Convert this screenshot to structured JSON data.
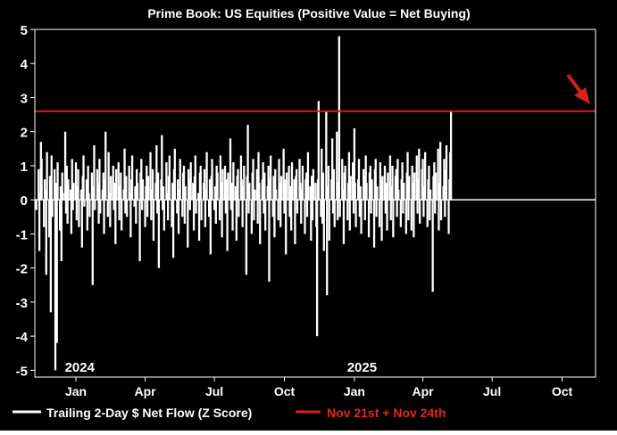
{
  "chart_data": {
    "type": "bar",
    "title": "Prime Book: US Equities (Positive Value = Net Buying)",
    "xlabel": "",
    "ylabel": "",
    "ylim": [
      -5.2,
      5
    ],
    "yticks": [
      5,
      4,
      3,
      2,
      1,
      0,
      -1,
      -2,
      -3,
      -4,
      -5
    ],
    "xlim": [
      "2023-11-22",
      "2025-11-28"
    ],
    "x_ticks": [
      {
        "date": "2024-01-15",
        "label": "Jan"
      },
      {
        "date": "2024-04-15",
        "label": "Apr"
      },
      {
        "date": "2024-07-15",
        "label": "Jul"
      },
      {
        "date": "2024-10-15",
        "label": "Oct"
      },
      {
        "date": "2025-01-15",
        "label": "Jan"
      },
      {
        "date": "2025-04-15",
        "label": "Apr"
      },
      {
        "date": "2025-07-15",
        "label": "Jul"
      },
      {
        "date": "2025-10-15",
        "label": "Oct"
      }
    ],
    "year_labels": [
      {
        "date": "2024-01-20",
        "label": "2024"
      },
      {
        "date": "2025-01-25",
        "label": "2025"
      }
    ],
    "reference_line": {
      "value": 2.6,
      "name": "Nov 21st + Nov 24th",
      "color": "#d91e1e"
    },
    "grid": false,
    "legend_position": "bottom",
    "colors": {
      "background": "#000000",
      "series": "#ffffff",
      "reference": "#d91e1e",
      "title": "#ffffff"
    },
    "series": [
      {
        "name": "Trailing 2-Day $ Net Flow (Z Score)",
        "start_date": "2023-11-24",
        "frequency": "business-day",
        "values": [
          -0.3,
          0.9,
          -1.5,
          0.2,
          1.7,
          1.2,
          -0.8,
          0.6,
          0.3,
          -2.2,
          1.4,
          -1.1,
          0.7,
          -3.3,
          1.3,
          -0.5,
          0.9,
          -5.0,
          0.5,
          -4.2,
          1.1,
          -0.9,
          0.4,
          -1.8,
          0.8,
          0.2,
          2.0,
          -0.4,
          1.0,
          -0.7,
          0.6,
          0.3,
          -1.0,
          1.2,
          -0.3,
          0.5,
          1.1,
          -0.6,
          0.4,
          0.9,
          -0.8,
          0.3,
          -1.4,
          0.7,
          1.3,
          -0.2,
          0.6,
          -0.9,
          1.0,
          0.2,
          -0.5,
          0.8,
          -2.5,
          0.4,
          1.6,
          -0.3,
          0.9,
          0.5,
          -0.7,
          1.2,
          -0.4,
          0.3,
          0.8,
          -1.0,
          0.6,
          2.0,
          -0.5,
          1.4,
          0.2,
          -0.8,
          0.7,
          1.0,
          -0.3,
          0.5,
          -1.3,
          0.9,
          1.1,
          -0.6,
          0.4,
          0.8,
          -0.9,
          0.3,
          1.5,
          -0.4,
          0.7,
          -0.5,
          1.0,
          0.2,
          -1.1,
          0.6,
          1.3,
          -0.2,
          0.4,
          -0.7,
          0.9,
          0.5,
          -1.8,
          0.8,
          1.2,
          -0.3,
          0.6,
          -0.8,
          0.4,
          1.0,
          -0.5,
          0.7,
          1.4,
          -0.6,
          0.3,
          0.9,
          -1.2,
          0.5,
          1.6,
          -0.4,
          0.8,
          -2.0,
          0.6,
          1.9,
          -0.3,
          0.4,
          -0.9,
          1.1,
          0.2,
          -0.6,
          0.7,
          1.3,
          -0.8,
          0.5,
          -1.7,
          0.9,
          1.5,
          -0.4,
          0.6,
          -1.0,
          0.3,
          1.2,
          -0.5,
          0.8,
          1.0,
          -0.7,
          0.4,
          -1.4,
          0.9,
          0.6,
          -0.3,
          1.1,
          0.5,
          -0.9,
          0.7,
          1.3,
          -0.4,
          0.2,
          -1.2,
          0.8,
          1.0,
          -0.6,
          0.5,
          0.9,
          -0.8,
          0.3,
          1.4,
          -0.5,
          0.6,
          -1.6,
          0.7,
          1.2,
          -0.3,
          0.4,
          -0.7,
          1.0,
          0.8,
          -0.6,
          1.3,
          0.5,
          -1.1,
          0.9,
          1.0,
          -0.4,
          0.6,
          -1.5,
          0.8,
          1.8,
          -0.3,
          0.5,
          -0.9,
          1.1,
          0.4,
          -1.2,
          0.7,
          0.9,
          -0.5,
          1.3,
          0.6,
          -0.8,
          0.4,
          1.0,
          -2.2,
          0.7,
          2.2,
          -0.4,
          0.5,
          -1.0,
          0.8,
          1.2,
          -0.6,
          0.3,
          0.9,
          -0.7,
          1.4,
          0.5,
          -1.3,
          0.6,
          1.1,
          -0.4,
          0.8,
          -0.9,
          0.4,
          1.0,
          -2.4,
          0.6,
          1.3,
          -0.5,
          0.7,
          -1.1,
          0.9,
          0.3,
          -0.6,
          1.2,
          0.5,
          -0.8,
          0.7,
          1.5,
          -0.4,
          0.6,
          -1.6,
          0.8,
          1.0,
          -0.5,
          0.4,
          -0.9,
          1.1,
          0.6,
          -1.3,
          0.7,
          0.9,
          -0.4,
          1.2,
          0.5,
          -0.7,
          0.3,
          1.0,
          -1.0,
          0.6,
          0.8,
          -0.5,
          1.4,
          0.4,
          -1.2,
          0.7,
          -0.6,
          0.9,
          0.5,
          -0.8,
          -4.0,
          0.6,
          2.9,
          -0.5,
          1.5,
          -0.7,
          0.8,
          -1.5,
          2.6,
          -2.8,
          0.4,
          1.0,
          -1.2,
          0.6,
          1.8,
          -0.4,
          0.9,
          -0.8,
          2.0,
          -0.6,
          0.5,
          4.8,
          -0.5,
          1.2,
          0.3,
          -1.3,
          0.8,
          1.0,
          -0.6,
          0.5,
          1.4,
          -0.9,
          0.7,
          1.1,
          -0.4,
          2.1,
          0.5,
          -0.8,
          0.6,
          1.2,
          -0.5,
          0.4,
          -1.0,
          0.9,
          0.7,
          -0.6,
          1.3,
          0.5,
          -1.1,
          0.8,
          1.0,
          -0.4,
          0.6,
          -1.4,
          0.9,
          1.2,
          -0.5,
          0.4,
          -0.8,
          1.1,
          0.6,
          -1.2,
          0.7,
          1.0,
          -0.4,
          0.5,
          -0.9,
          0.8,
          1.3,
          -0.6,
          0.4,
          1.0,
          -1.1,
          0.7,
          0.9,
          -0.5,
          1.2,
          0.3,
          -0.8,
          0.6,
          1.1,
          -0.4,
          0.5,
          -1.0,
          0.8,
          1.4,
          -0.6,
          0.7,
          -0.9,
          1.0,
          0.5,
          -1.1,
          0.8,
          1.3,
          -0.4,
          0.6,
          1.5,
          -0.7,
          0.9,
          1.2,
          -0.5,
          0.4,
          1.4,
          -0.8,
          0.6,
          1.0,
          -0.6,
          0.3,
          -2.7,
          0.7,
          1.1,
          -0.4,
          0.8,
          1.5,
          -0.9,
          0.5,
          1.7,
          -0.6,
          0.4,
          1.2,
          -0.5,
          0.9,
          1.6,
          -1.0,
          0.6,
          1.4,
          2.6
        ]
      }
    ]
  }
}
